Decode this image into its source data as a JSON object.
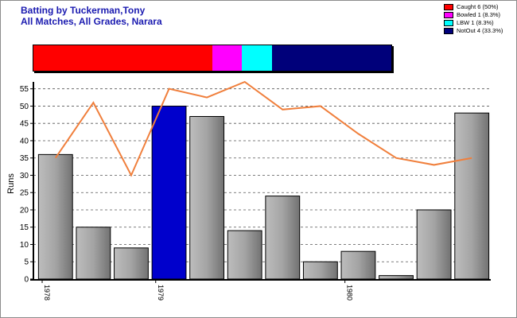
{
  "header": {
    "title_line1": "Batting by Tuckerman,Tony",
    "title_line2": "All Matches, All Grades, Narara"
  },
  "legend": [
    {
      "label": "Caught 6 (50%)",
      "color": "#ff0000"
    },
    {
      "label": "Bowled 1 (8.3%)",
      "color": "#ff00ff"
    },
    {
      "label": "LBW 1 (8.3%)",
      "color": "#00ffff"
    },
    {
      "label": "NotOut 4 (33.3%)",
      "color": "#00007a"
    }
  ],
  "dismissal_bar": [
    {
      "name": "Caught",
      "fraction": 0.5,
      "color": "#ff0000"
    },
    {
      "name": "Bowled",
      "fraction": 0.083,
      "color": "#ff00ff"
    },
    {
      "name": "LBW",
      "fraction": 0.083,
      "color": "#00ffff"
    },
    {
      "name": "NotOut",
      "fraction": 0.334,
      "color": "#00007a"
    }
  ],
  "chart_data": {
    "type": "bar",
    "title": "Batting by Tuckerman,Tony",
    "subtitle": "All Matches, All Grades, Narara",
    "xlabel": "",
    "ylabel": "Runs",
    "ylim": [
      0,
      57
    ],
    "yticks": [
      0,
      5,
      10,
      15,
      20,
      25,
      30,
      35,
      40,
      45,
      50,
      55
    ],
    "grid": "horizontal dashed",
    "x_tick_labels": [
      {
        "index": 0,
        "label": "1978"
      },
      {
        "index": 3,
        "label": "1979"
      },
      {
        "index": 8,
        "label": "1980"
      }
    ],
    "series": [
      {
        "type": "bar",
        "values": [
          36,
          15,
          9,
          50,
          47,
          14,
          24,
          5,
          8,
          1,
          20,
          48
        ],
        "highlight_index": 3,
        "color": "#9a9a9a",
        "highlight_color": "#0000cc"
      },
      {
        "type": "line",
        "values": [
          35,
          51,
          30,
          55,
          52.5,
          57,
          49,
          50,
          42,
          35,
          33,
          35
        ],
        "color": "#f07f3c"
      }
    ]
  }
}
